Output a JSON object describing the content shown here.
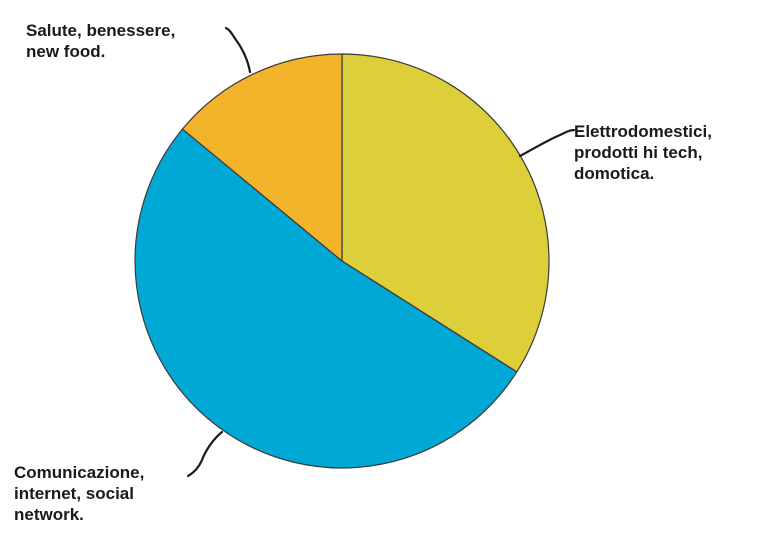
{
  "chart_data": {
    "type": "pie",
    "title": "",
    "start_angle_deg": 0,
    "direction": "clockwise",
    "legend": "none",
    "slices": [
      {
        "label_lines": [
          "Elettrodomestici,",
          "prodotti hi tech,",
          "domotica."
        ],
        "value": 34,
        "color": "#dccf3a"
      },
      {
        "label_lines": [
          "Comunicazione,",
          "internet, social",
          "network."
        ],
        "value": 52,
        "color": "#00a8d6"
      },
      {
        "label_lines": [
          "Salute, benessere,",
          "new food."
        ],
        "value": 14,
        "color": "#f2b42a"
      }
    ]
  }
}
